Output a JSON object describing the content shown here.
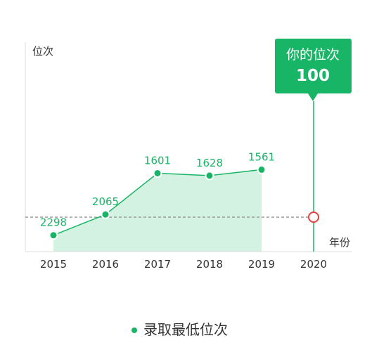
{
  "chart_data": {
    "type": "area",
    "title": "",
    "xlabel": "年份",
    "ylabel": "位次",
    "x": [
      "2015",
      "2016",
      "2017",
      "2018",
      "2019",
      "2020"
    ],
    "series": [
      {
        "name": "录取最低位次",
        "x": [
          "2015",
          "2016",
          "2017",
          "2018",
          "2019"
        ],
        "values": [
          2298,
          2065,
          1601,
          1628,
          1561
        ]
      }
    ],
    "marker": {
      "x": "2020",
      "y": 100,
      "label": "你的位次",
      "value": "100"
    },
    "legend": {
      "position": "bottom",
      "label": "录取最低位次"
    },
    "grid": false,
    "colors": {
      "line": "#19b566",
      "area": "#d4f2e1",
      "marker_ring": "#e0413c",
      "reference_line": "#888888"
    }
  }
}
